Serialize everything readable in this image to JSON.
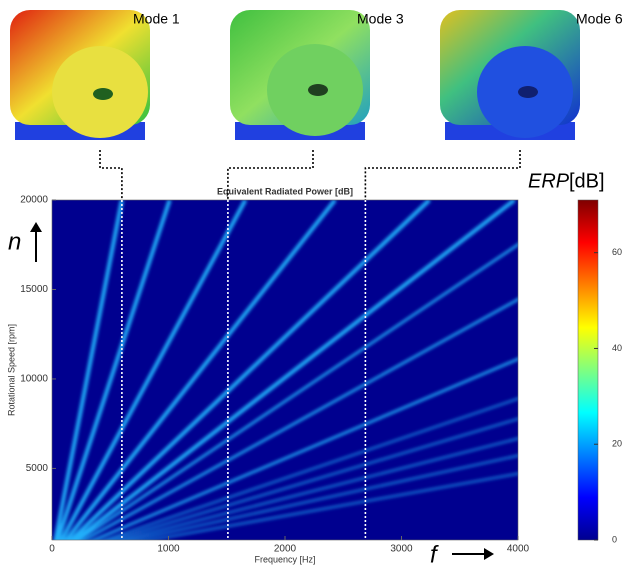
{
  "chart_data": {
    "type": "campbell",
    "title": "Equivalent Radiated Power [dB]",
    "x_label": "Frequency [Hz]",
    "y_label": "Rotational Speed [rpm]",
    "xlim": [
      0,
      4000
    ],
    "ylim": [
      1000,
      20000
    ],
    "xticks": [
      0,
      1000,
      2000,
      3000,
      4000
    ],
    "yticks": [
      5000,
      10000,
      15000,
      20000
    ],
    "background": "#00008f",
    "ray_color": "#22b8ff",
    "rays": [
      600,
      1010,
      1660,
      2430,
      3240,
      3970,
      4570,
      5540,
      7200,
      8990,
      10300,
      12000,
      14000,
      17000
    ],
    "modes": [
      {
        "label": "Mode 1",
        "frequency": 600
      },
      {
        "label": "Mode 3",
        "frequency": 1510
      },
      {
        "label": "Mode 6",
        "frequency": 2690
      }
    ],
    "speed_symbol": "n",
    "frequency_symbol": "f",
    "colorbar": {
      "label_symbol": "ERP",
      "label_unit": "[dB]",
      "lim": [
        0,
        71
      ],
      "ticks": [
        0,
        20,
        40,
        60
      ]
    }
  }
}
